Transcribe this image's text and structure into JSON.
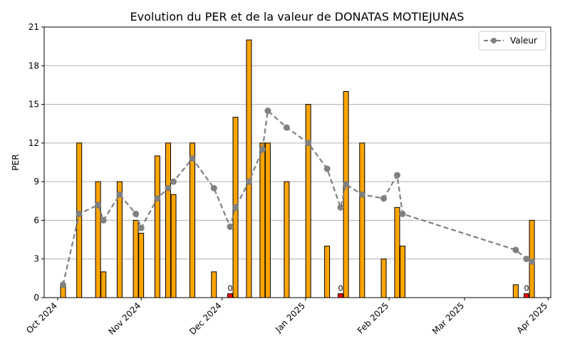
{
  "chart_data": {
    "type": "bar",
    "title": "Evolution du PER et de la valeur de DONATAS MOTIEJUNAS",
    "ylabel": "PER",
    "xlabel": "",
    "ylim": [
      0,
      21
    ],
    "yticks": [
      0,
      3,
      6,
      9,
      12,
      15,
      18,
      21
    ],
    "xlim": [
      "2024-09-26",
      "2025-04-02"
    ],
    "xticks": [
      {
        "date": "2024-10-01",
        "label": "Oct 2024"
      },
      {
        "date": "2024-11-01",
        "label": "Nov 2024"
      },
      {
        "date": "2024-12-01",
        "label": "Dec 2024"
      },
      {
        "date": "2025-01-01",
        "label": "Jan 2025"
      },
      {
        "date": "2025-02-01",
        "label": "Feb 2025"
      },
      {
        "date": "2025-03-01",
        "label": "Mar 2025"
      },
      {
        "date": "2025-04-01",
        "label": "Apr 2025"
      }
    ],
    "grid": "y",
    "legend_position": "top-right",
    "colors": {
      "bar": "#FFA500",
      "bar_zero": "#FF0000",
      "line": "#808080"
    },
    "bars": [
      {
        "date": "2024-10-03",
        "value": 1
      },
      {
        "date": "2024-10-09",
        "value": 12
      },
      {
        "date": "2024-10-16",
        "value": 9
      },
      {
        "date": "2024-10-18",
        "value": 2
      },
      {
        "date": "2024-10-24",
        "value": 9
      },
      {
        "date": "2024-10-30",
        "value": 6
      },
      {
        "date": "2024-11-01",
        "value": 5
      },
      {
        "date": "2024-11-07",
        "value": 11
      },
      {
        "date": "2024-11-11",
        "value": 12
      },
      {
        "date": "2024-11-13",
        "value": 8
      },
      {
        "date": "2024-11-20",
        "value": 12
      },
      {
        "date": "2024-11-28",
        "value": 2
      },
      {
        "date": "2024-12-04",
        "value": 0.3,
        "label": "0"
      },
      {
        "date": "2024-12-06",
        "value": 14
      },
      {
        "date": "2024-12-11",
        "value": 20
      },
      {
        "date": "2024-12-16",
        "value": 12
      },
      {
        "date": "2024-12-18",
        "value": 12
      },
      {
        "date": "2024-12-25",
        "value": 9
      },
      {
        "date": "2025-01-02",
        "value": 15
      },
      {
        "date": "2025-01-09",
        "value": 4
      },
      {
        "date": "2025-01-14",
        "value": 0.3,
        "label": "0"
      },
      {
        "date": "2025-01-16",
        "value": 16
      },
      {
        "date": "2025-01-22",
        "value": 12
      },
      {
        "date": "2025-01-30",
        "value": 3
      },
      {
        "date": "2025-02-04",
        "value": 7
      },
      {
        "date": "2025-02-06",
        "value": 4
      },
      {
        "date": "2025-03-20",
        "value": 1
      },
      {
        "date": "2025-03-24",
        "value": 0.3,
        "label": "0"
      },
      {
        "date": "2025-03-26",
        "value": 6
      }
    ],
    "series": [
      {
        "name": "Valeur",
        "type": "line",
        "points": [
          {
            "date": "2024-10-03",
            "value": 1.0
          },
          {
            "date": "2024-10-09",
            "value": 6.5
          },
          {
            "date": "2024-10-16",
            "value": 7.2
          },
          {
            "date": "2024-10-18",
            "value": 6.0
          },
          {
            "date": "2024-10-24",
            "value": 8.0
          },
          {
            "date": "2024-10-30",
            "value": 6.5
          },
          {
            "date": "2024-11-01",
            "value": 5.4
          },
          {
            "date": "2024-11-07",
            "value": 7.7
          },
          {
            "date": "2024-11-11",
            "value": 8.5
          },
          {
            "date": "2024-11-13",
            "value": 9.0
          },
          {
            "date": "2024-11-20",
            "value": 10.8
          },
          {
            "date": "2024-11-28",
            "value": 8.5
          },
          {
            "date": "2024-12-04",
            "value": 5.5
          },
          {
            "date": "2024-12-06",
            "value": 7.0
          },
          {
            "date": "2024-12-11",
            "value": 9.0
          },
          {
            "date": "2024-12-16",
            "value": 11.5
          },
          {
            "date": "2024-12-18",
            "value": 14.5
          },
          {
            "date": "2024-12-25",
            "value": 13.2
          },
          {
            "date": "2025-01-02",
            "value": 12.0
          },
          {
            "date": "2025-01-09",
            "value": 10.0
          },
          {
            "date": "2025-01-14",
            "value": 7.0
          },
          {
            "date": "2025-01-16",
            "value": 8.8
          },
          {
            "date": "2025-01-22",
            "value": 8.0
          },
          {
            "date": "2025-01-30",
            "value": 7.7
          },
          {
            "date": "2025-02-04",
            "value": 9.5
          },
          {
            "date": "2025-02-06",
            "value": 6.5
          },
          {
            "date": "2025-03-20",
            "value": 3.7
          },
          {
            "date": "2025-03-24",
            "value": 3.0
          },
          {
            "date": "2025-03-26",
            "value": 2.8
          }
        ]
      }
    ]
  }
}
